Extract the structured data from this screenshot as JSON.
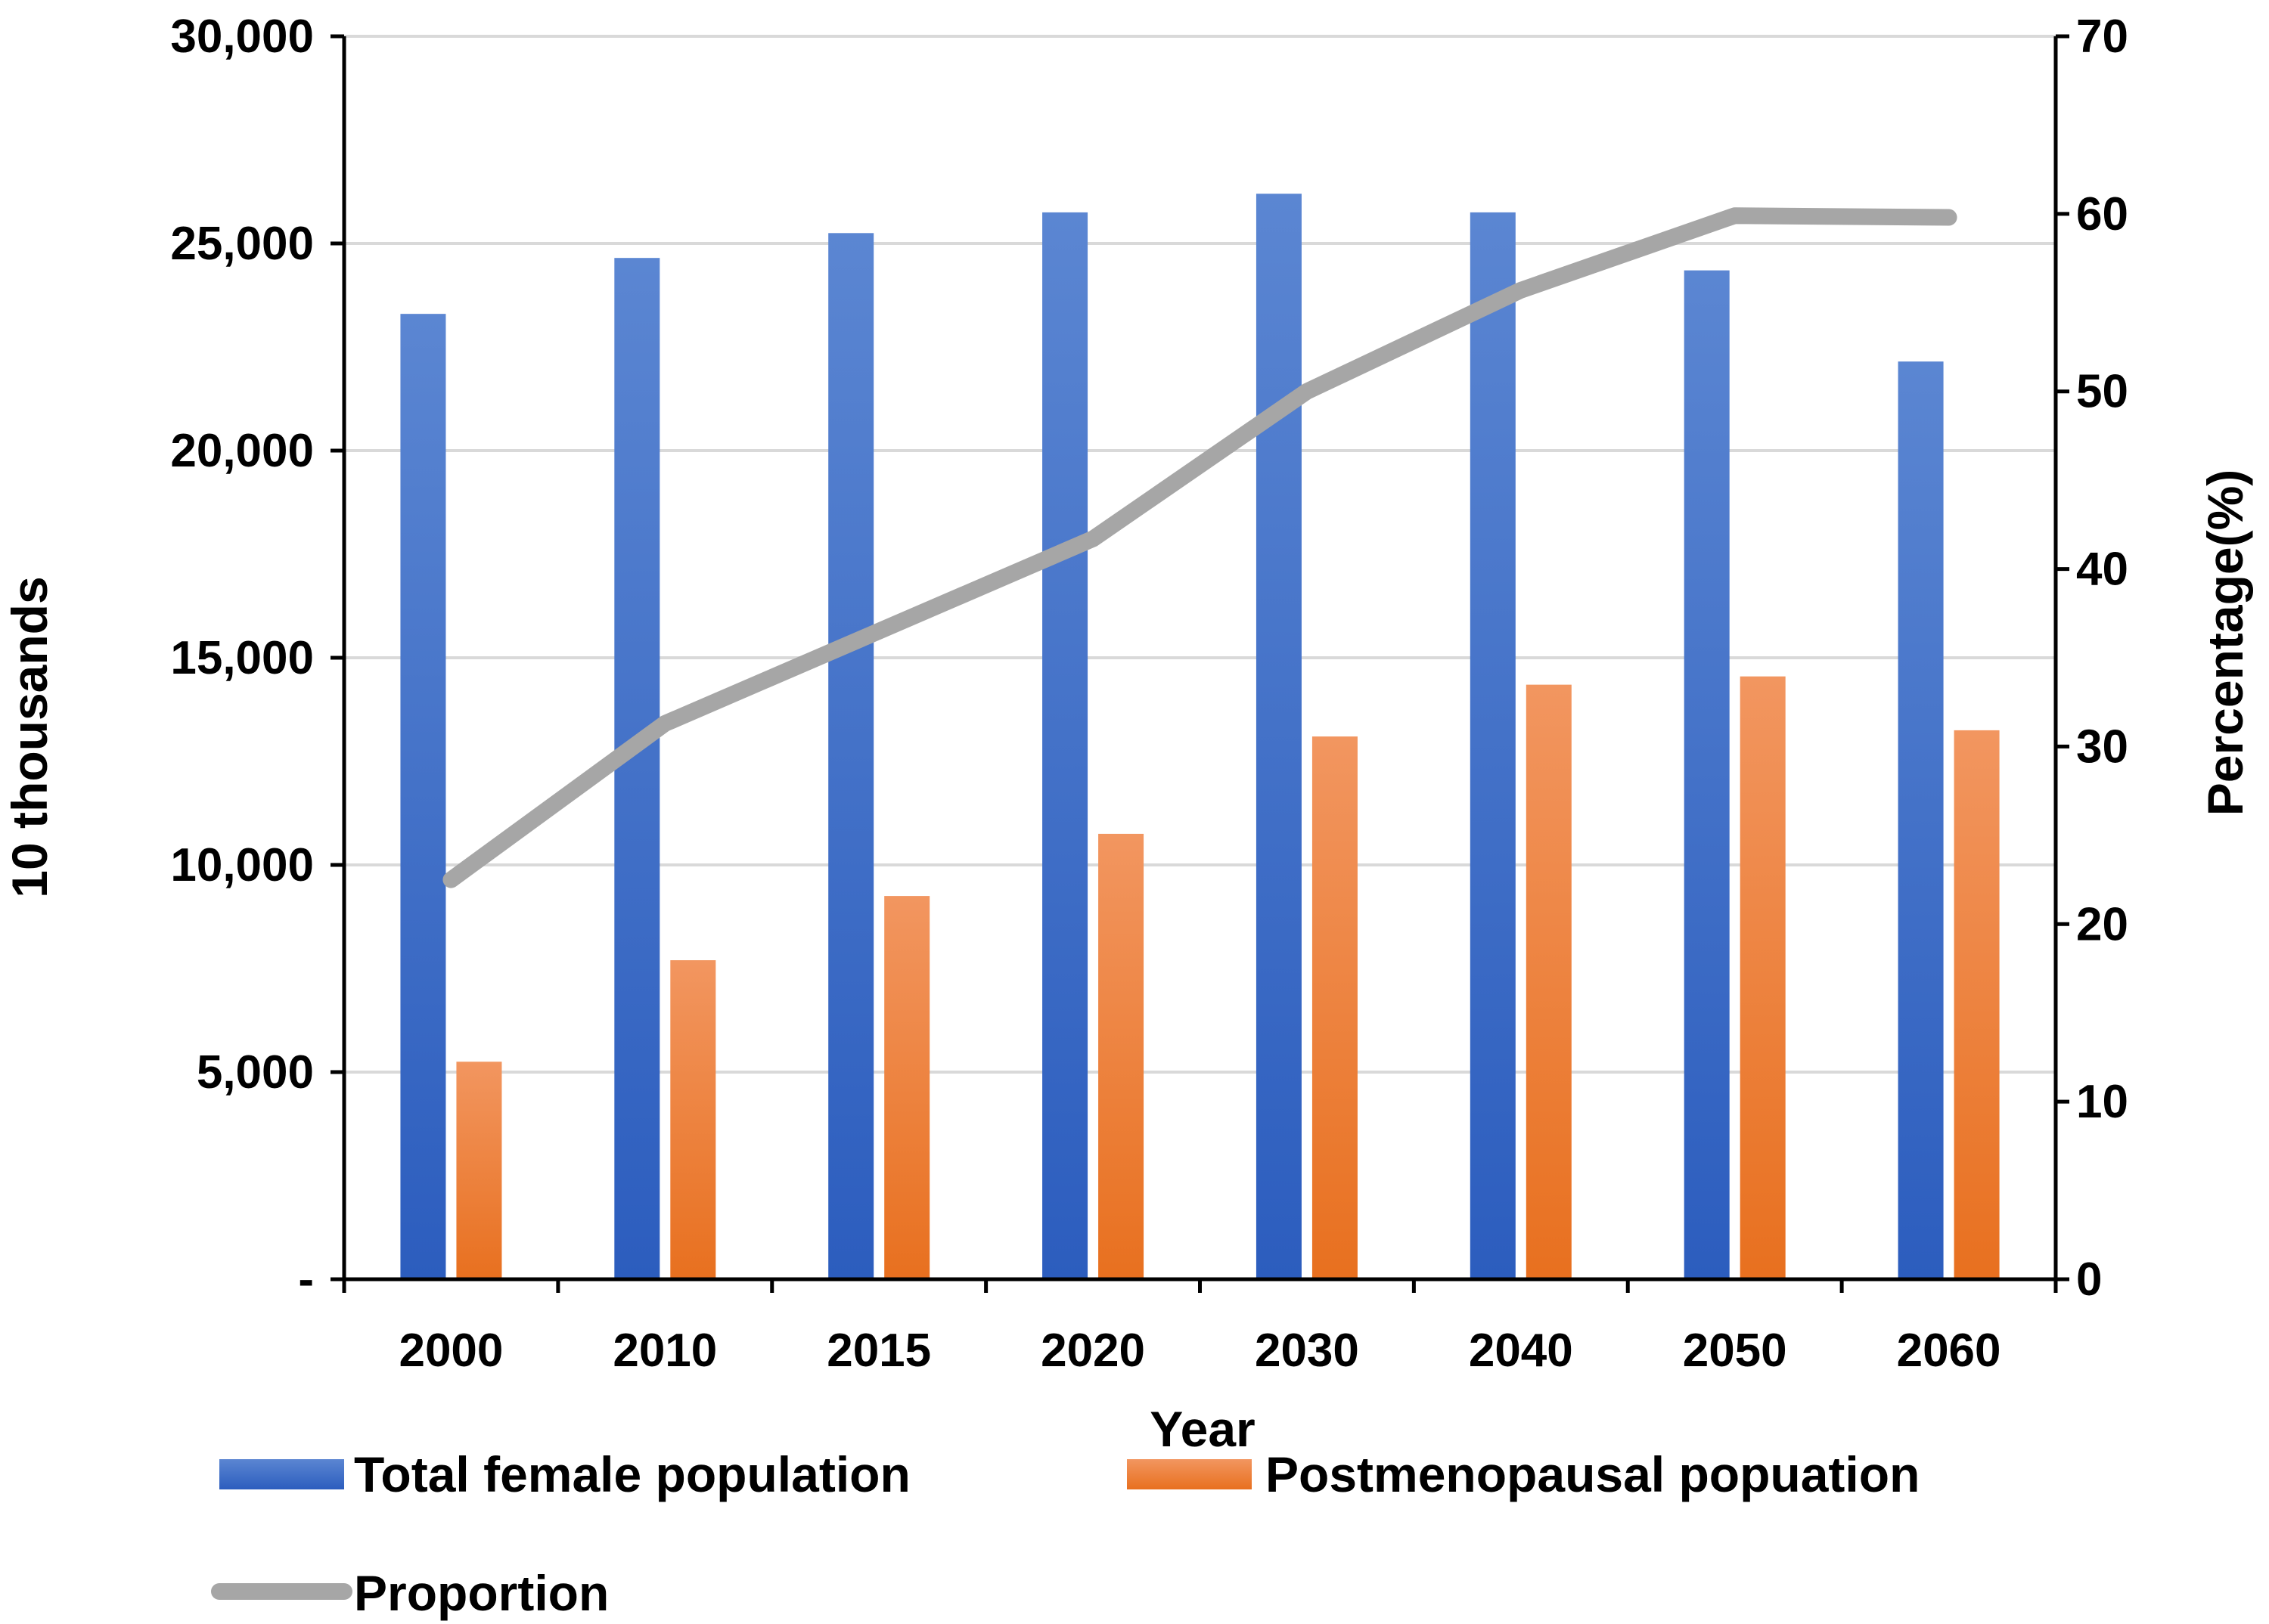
{
  "chart_data": {
    "type": "bar",
    "combo": "bar-bar-line",
    "categories": [
      "2000",
      "2010",
      "2015",
      "2020",
      "2030",
      "2040",
      "2050",
      "2060"
    ],
    "series": [
      {
        "name": "Total female population",
        "kind": "bar",
        "axis": "left",
        "color": "#3A6CCB",
        "values": [
          23300,
          24650,
          25250,
          25750,
          26200,
          25750,
          24350,
          22150
        ]
      },
      {
        "name": "Postmenopausal popuation",
        "kind": "bar",
        "axis": "left",
        "color": "#F07A30",
        "values": [
          5250,
          7700,
          9250,
          10750,
          13100,
          14350,
          14550,
          13250
        ]
      },
      {
        "name": "Proportion",
        "kind": "line",
        "axis": "right",
        "color": "#A6A6A6",
        "values": [
          22.5,
          31.3,
          36.5,
          41.7,
          50.0,
          55.7,
          59.9,
          59.8
        ]
      }
    ],
    "xlabel": "Year",
    "ylabel": "10 thousands",
    "y2label": "Percentage(%)",
    "ylim": [
      0,
      30000
    ],
    "y2lim": [
      0,
      70
    ],
    "yticks": [
      "-",
      "5,000",
      "10,000",
      "15,000",
      "20,000",
      "25,000",
      "30,000"
    ],
    "y2ticks": [
      "0",
      "10",
      "20",
      "30",
      "40",
      "50",
      "60",
      "70"
    ],
    "grid": true,
    "legend": "bottom"
  }
}
